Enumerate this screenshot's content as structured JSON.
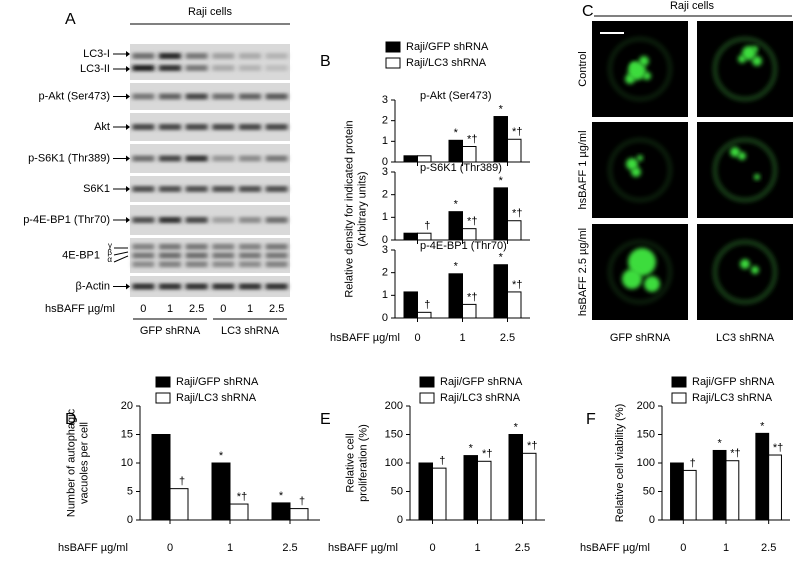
{
  "blot": {
    "letter": "A",
    "title": "Raji cells",
    "rows": [
      [
        "LC3-I",
        "LC3-II"
      ],
      [
        "p-Akt (Ser473)"
      ],
      [
        "Akt"
      ],
      [
        "p-S6K1 (Thr389)"
      ],
      [
        "S6K1"
      ],
      [
        "p-4E-BP1 (Thr70)"
      ],
      [
        "4E-BP1"
      ],
      [
        "β-Actin"
      ]
    ],
    "isoforms": [
      "γ",
      "β",
      "α"
    ],
    "dose_label": "hsBAFF µg/ml",
    "doses": [
      "0",
      "1",
      "2.5",
      "0",
      "1",
      "2.5"
    ],
    "groups": [
      "GFP shRNA",
      "LC3 shRNA"
    ]
  },
  "micrographs": {
    "letter": "C",
    "title": "Raji cells",
    "rows": [
      "Control",
      "hsBAFF 1 µg/ml",
      "hsBAFF 2.5 µg/ml"
    ],
    "columns": [
      "GFP shRNA",
      "LC3 shRNA"
    ]
  },
  "chart_data": [
    {
      "type": "bar",
      "letter": "B",
      "categories": [
        "0",
        "1",
        "2.5"
      ],
      "xlabel": "hsBAFF µg/ml",
      "ylabel": [
        "Relative density for indicated protein",
        "(Arbitrary units)"
      ],
      "ylim": [
        0,
        3
      ],
      "yticks": [
        0,
        1,
        2,
        3
      ],
      "series": [
        {
          "name": "Raji/GFP shRNA",
          "color": "#000000"
        },
        {
          "name": "Raji/LC3 shRNA",
          "color": "#ffffff"
        }
      ],
      "panels": [
        {
          "title": "p-Akt (Ser473)",
          "series": [
            {
              "values": [
                0.3,
                1.05,
                2.2
              ],
              "annotations": [
                null,
                "*",
                "*"
              ]
            },
            {
              "values": [
                0.3,
                0.75,
                1.1
              ],
              "annotations": [
                null,
                "*†",
                "*†"
              ]
            }
          ]
        },
        {
          "title": "p-S6K1 (Thr389)",
          "series": [
            {
              "values": [
                0.3,
                1.25,
                2.3
              ],
              "annotations": [
                null,
                "*",
                "*"
              ]
            },
            {
              "values": [
                0.3,
                0.5,
                0.85
              ],
              "annotations": [
                "†",
                "*†",
                "*†"
              ]
            }
          ]
        },
        {
          "title": "p-4E-BP1 (Thr70)",
          "series": [
            {
              "values": [
                1.15,
                1.95,
                2.35
              ],
              "annotations": [
                null,
                "*",
                "*"
              ]
            },
            {
              "values": [
                0.25,
                0.6,
                1.15
              ],
              "annotations": [
                "†",
                "*†",
                "*†"
              ]
            }
          ]
        }
      ]
    },
    {
      "type": "bar",
      "letter": "D",
      "categories": [
        "0",
        "1",
        "2.5"
      ],
      "xlabel": "hsBAFF µg/ml",
      "ylabel": [
        "Number of autophagic",
        "vacuoles per cell"
      ],
      "ylim": [
        0,
        20
      ],
      "yticks": [
        0,
        5,
        10,
        15,
        20
      ],
      "series": [
        {
          "name": "Raji/GFP shRNA",
          "color": "#000000",
          "values": [
            15,
            10,
            3
          ],
          "annotations": [
            null,
            "*",
            "*"
          ]
        },
        {
          "name": "Raji/LC3 shRNA",
          "color": "#ffffff",
          "values": [
            5.5,
            2.8,
            2
          ],
          "annotations": [
            "†",
            "*†",
            "†"
          ]
        }
      ]
    },
    {
      "type": "bar",
      "letter": "E",
      "categories": [
        "0",
        "1",
        "2.5"
      ],
      "xlabel": "hsBAFF µg/ml",
      "ylabel": [
        "Relative cell",
        "proliferation (%)"
      ],
      "ylim": [
        0,
        200
      ],
      "yticks": [
        0,
        50,
        100,
        150,
        200
      ],
      "series": [
        {
          "name": "Raji/GFP shRNA",
          "color": "#000000",
          "values": [
            100,
            113,
            150
          ],
          "annotations": [
            null,
            "*",
            "*"
          ]
        },
        {
          "name": "Raji/LC3 shRNA",
          "color": "#ffffff",
          "values": [
            91,
            103,
            117
          ],
          "annotations": [
            "†",
            "*†",
            "*†"
          ]
        }
      ]
    },
    {
      "type": "bar",
      "letter": "F",
      "categories": [
        "0",
        "1",
        "2.5"
      ],
      "xlabel": "hsBAFF µg/ml",
      "ylabel": [
        "Relative cell viability (%)"
      ],
      "ylim": [
        0,
        200
      ],
      "yticks": [
        0,
        50,
        100,
        150,
        200
      ],
      "series": [
        {
          "name": "Raji/GFP shRNA",
          "color": "#000000",
          "values": [
            100,
            122,
            152
          ],
          "annotations": [
            null,
            "*",
            "*"
          ]
        },
        {
          "name": "Raji/LC3 shRNA",
          "color": "#ffffff",
          "values": [
            87,
            104,
            114
          ],
          "annotations": [
            "†",
            "*†",
            "*†"
          ]
        }
      ]
    }
  ]
}
